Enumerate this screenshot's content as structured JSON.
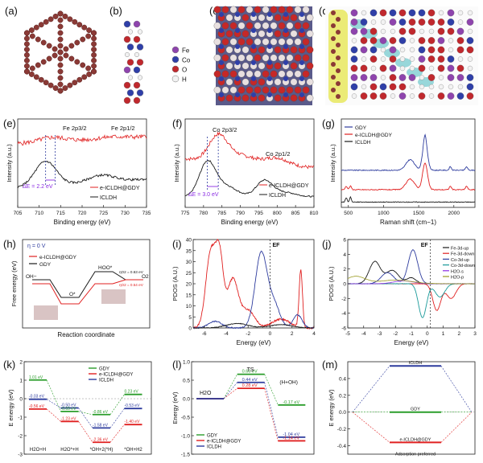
{
  "figure": {
    "panel_labels": [
      "(a)",
      "(b)",
      "(c)",
      "(d)",
      "(e)",
      "(f)",
      "(g)",
      "(h)",
      "(i)",
      "(j)",
      "(k)",
      "(l)",
      "(m)"
    ],
    "atom_legend": [
      "Fe",
      "Co",
      "O",
      "H"
    ],
    "colors": {
      "black": "#1a1a1a",
      "red": "#e02020",
      "blue": "#2e3c9e",
      "green": "#2a9d2a",
      "cyan": "#1a9a9a",
      "purple": "#8a2be2",
      "pink": "#e040a0",
      "fe": "#8e44ad",
      "co": "#2f3fa8",
      "o": "#c0282d",
      "h": "#f2f2f2",
      "graphdiyne": "#a0403a"
    }
  },
  "chart_data": [
    {
      "panel": "e",
      "type": "line",
      "xlabel": "Binding energy (eV)",
      "ylabel": "Intensity (a.u.)",
      "xlim": [
        705,
        735
      ],
      "x_ticks": [
        705,
        710,
        715,
        720,
        725,
        730,
        735
      ],
      "annotations": [
        "Fe 2p3/2",
        "Fe 2p1/2",
        "ΔE = 2.2 eV"
      ],
      "series": [
        {
          "name": "e-ICLDH@GDY",
          "color": "red"
        },
        {
          "name": "ICLDH",
          "color": "black"
        }
      ]
    },
    {
      "panel": "f",
      "type": "line",
      "xlabel": "Binding energy (eV)",
      "ylabel": "Intensity (a.u.)",
      "xlim": [
        775,
        810
      ],
      "x_ticks": [
        775,
        780,
        785,
        790,
        795,
        800,
        805,
        810
      ],
      "annotations": [
        "Co 2p3/2",
        "Co 2p1/2",
        "ΔE = 3.0 eV"
      ],
      "series": [
        {
          "name": "e-ICLDH@GDY",
          "color": "red"
        },
        {
          "name": "ICLDH",
          "color": "black"
        }
      ]
    },
    {
      "panel": "g",
      "type": "line",
      "xlabel": "Raman shift (cm−1)",
      "ylabel": "Intensity (a.u.)",
      "xlim": [
        400,
        2300
      ],
      "x_ticks": [
        500,
        1000,
        1500,
        2000
      ],
      "series": [
        {
          "name": "GDY",
          "color": "blue"
        },
        {
          "name": "e-ICLDH@GDY",
          "color": "red"
        },
        {
          "name": "ICLDH",
          "color": "black"
        }
      ]
    },
    {
      "panel": "h",
      "type": "line",
      "xlabel": "Reaction coordinate",
      "ylabel": "Free energy (eV)",
      "conditions": "η = 0 V",
      "annotations": [
        "OH−",
        "O*",
        "HOO*",
        "O2",
        "ηO2 = 0.63 eV",
        "ηO2 = 0.54 eV"
      ],
      "series": [
        {
          "name": "e-ICLDH@GDY",
          "color": "red"
        },
        {
          "name": "GDY",
          "color": "black"
        }
      ]
    },
    {
      "panel": "i",
      "type": "line",
      "xlabel": "Energy (eV)",
      "ylabel": "PDOS (A.U.)",
      "xlim": [
        -7,
        4
      ],
      "ylim": [
        0,
        40
      ],
      "x_ticks": [
        -6,
        -4,
        -2,
        0,
        2,
        4
      ],
      "y_ticks": [
        0,
        5,
        10,
        15,
        20,
        25,
        30,
        35,
        40
      ],
      "fermi_label": "EF"
    },
    {
      "panel": "j",
      "type": "line",
      "xlabel": "Energy (eV)",
      "ylabel": "PDOS (A.U.)",
      "xlim": [
        -5,
        3
      ],
      "ylim": [
        -6,
        6
      ],
      "x_ticks": [
        -5,
        -4,
        -3,
        -2,
        -1,
        0,
        1,
        2,
        3
      ],
      "y_ticks": [
        -6,
        -4,
        -2,
        0,
        2,
        4,
        6
      ],
      "fermi_label": "EF",
      "series": [
        {
          "name": "Fe-3d-up",
          "color": "black"
        },
        {
          "name": "Fe-3d-down",
          "color": "red"
        },
        {
          "name": "Co-3d-up",
          "color": "blue"
        },
        {
          "name": "Co-3d-down",
          "color": "cyan"
        },
        {
          "name": "H2O-s",
          "color": "purple"
        },
        {
          "name": "H2O-p",
          "color": "olive"
        }
      ]
    },
    {
      "panel": "k",
      "type": "line",
      "ylabel": "E energy (eV)",
      "ylim": [
        -3,
        2
      ],
      "y_ticks": [
        -3,
        -2,
        -1,
        0,
        1,
        2
      ],
      "categories": [
        "H2O+H",
        "H2O*+H",
        "*OH+2(*H)",
        "*OH+H2"
      ],
      "series": [
        {
          "name": "GDY",
          "color": "green",
          "values": [
            1.01,
            -0.69,
            -0.86,
            0.23
          ]
        },
        {
          "name": "e-ICLDH@GDY",
          "color": "red",
          "values": [
            -0.56,
            -1.23,
            -2.36,
            -1.4
          ]
        },
        {
          "name": "ICLDH",
          "color": "blue",
          "values": [
            -0.03,
            -0.5,
            -1.58,
            -0.53
          ]
        }
      ],
      "value_labels": [
        "1.01 eV",
        "-0.03 eV",
        "-0.56 eV",
        "-0.50 eV",
        "-0.69 eV",
        "-1.23 eV",
        "-0.86 eV",
        "-1.58 eV",
        "-2.36 eV",
        "0.23 eV",
        "-0.53 eV",
        "-1.40 eV"
      ]
    },
    {
      "panel": "l",
      "type": "line",
      "ylabel": "Energy (eV)",
      "ylim": [
        -1.5,
        1.0
      ],
      "y_ticks": [
        -1.5,
        -1.0,
        -0.5,
        0.0,
        0.5,
        1.0
      ],
      "categories": [
        "H2O",
        "TS",
        "(H+OH)"
      ],
      "series": [
        {
          "name": "GDY",
          "color": "green",
          "values": [
            0,
            0.66,
            -0.17
          ]
        },
        {
          "name": "e-ICLDH@GDY",
          "color": "red",
          "values": [
            0,
            0.28,
            -1.14
          ]
        },
        {
          "name": "ICLDH",
          "color": "blue",
          "values": [
            0,
            0.44,
            -1.04
          ]
        }
      ],
      "value_labels": [
        "0.66 eV",
        "0.44 eV",
        "0.28 eV",
        "-0.17 eV",
        "-1.04 eV",
        "-1.14 eV"
      ]
    },
    {
      "panel": "m",
      "type": "line",
      "ylabel": "E energy (eV)",
      "ylim": [
        -0.5,
        0.6
      ],
      "y_ticks": [
        -0.4,
        -0.2,
        0.0,
        0.2,
        0.4
      ],
      "series": [
        {
          "name": "ICLDH",
          "color": "blue",
          "value": 0.55
        },
        {
          "name": "GDY",
          "color": "green",
          "value": 0.0
        },
        {
          "name": "e-ICLDH@GDY",
          "color": "red",
          "value": -0.36
        }
      ],
      "annotations": [
        "Adsorption preferred"
      ]
    }
  ]
}
